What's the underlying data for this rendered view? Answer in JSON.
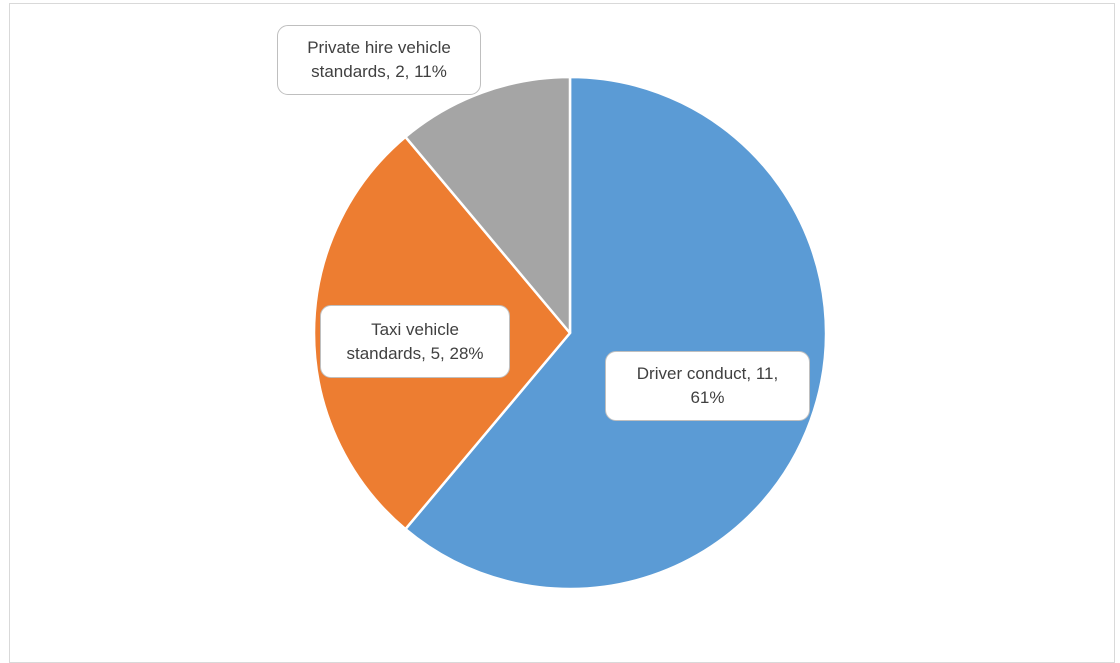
{
  "chart_data": {
    "type": "pie",
    "title": "",
    "categories": [
      "Driver conduct",
      "Taxi vehicle standards",
      "Private hire vehicle standards"
    ],
    "values": [
      11,
      5,
      2
    ],
    "percentages": [
      "61%",
      "28%",
      "11%"
    ],
    "colors": [
      "#5b9bd5",
      "#ed7d31",
      "#a5a5a5"
    ],
    "start_angle_deg": 0,
    "direction": "clockwise",
    "labels": [
      {
        "line1": "Driver conduct, 11,",
        "line2": "61%"
      },
      {
        "line1": "Taxi vehicle",
        "line2": "standards, 5, 28%"
      },
      {
        "line1": "Private hire vehicle",
        "line2": "standards, 2, 11%"
      }
    ],
    "legend": "none"
  }
}
